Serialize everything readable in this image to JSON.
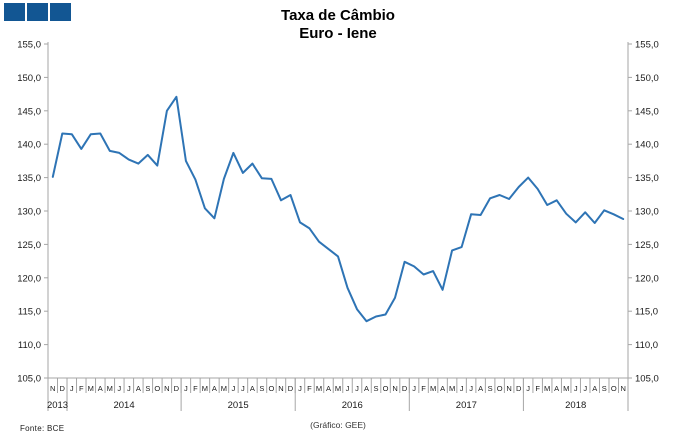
{
  "title": {
    "line1": "Taxa de Câmbio",
    "line2": "Euro - Iene"
  },
  "logo": {
    "name": "gee-logo",
    "square_color": "#125693",
    "square_count": 3
  },
  "footer": {
    "source": "Fonte: BCE",
    "credit": "(Gráfico: GEE)"
  },
  "chart_data": {
    "type": "line",
    "title": "Taxa de Câmbio Euro - Iene",
    "xlabel": "",
    "ylabel": "",
    "ylim": [
      105.0,
      155.0
    ],
    "y_tick_step": 5.0,
    "y_tick_labels": [
      "155,0",
      "150,0",
      "145,0",
      "140,0",
      "135,0",
      "130,0",
      "125,0",
      "120,0",
      "115,0",
      "110,0",
      "105,0"
    ],
    "grid": false,
    "legend_position": "none",
    "dual_y_axis": true,
    "line_color": "#2E74B5",
    "axis_color": "#A6A6A6",
    "x_months": [
      "N",
      "D",
      "J",
      "F",
      "M",
      "A",
      "M",
      "J",
      "J",
      "A",
      "S",
      "O",
      "N",
      "D",
      "J",
      "F",
      "M",
      "A",
      "M",
      "J",
      "J",
      "A",
      "S",
      "O",
      "N",
      "D",
      "J",
      "F",
      "M",
      "A",
      "M",
      "J",
      "J",
      "A",
      "S",
      "O",
      "N",
      "D",
      "J",
      "F",
      "M",
      "A",
      "M",
      "J",
      "J",
      "A",
      "S",
      "O",
      "N",
      "D",
      "J",
      "F",
      "M",
      "A",
      "M",
      "J",
      "J",
      "A",
      "S",
      "O",
      "N"
    ],
    "year_groups": [
      {
        "label": "2013",
        "count": 2
      },
      {
        "label": "2014",
        "count": 12
      },
      {
        "label": "2015",
        "count": 12
      },
      {
        "label": "2016",
        "count": 12
      },
      {
        "label": "2017",
        "count": 12
      },
      {
        "label": "2018",
        "count": 11
      }
    ],
    "values": [
      135.1,
      141.6,
      141.5,
      139.3,
      141.5,
      141.6,
      139.0,
      138.7,
      137.7,
      137.1,
      138.4,
      136.8,
      145.0,
      147.1,
      137.5,
      134.7,
      130.4,
      128.9,
      134.8,
      138.7,
      135.7,
      137.1,
      134.9,
      134.8,
      131.6,
      132.4,
      128.3,
      127.4,
      125.4,
      124.3,
      123.2,
      118.5,
      115.3,
      113.5,
      114.2,
      114.5,
      117.0,
      122.4,
      121.7,
      120.5,
      121.0,
      118.2,
      124.1,
      124.6,
      129.5,
      129.4,
      131.9,
      132.4,
      131.8,
      133.6,
      135.0,
      133.3,
      130.9,
      131.6,
      129.6,
      128.3,
      129.8,
      128.2,
      130.1,
      129.5,
      128.8
    ]
  }
}
